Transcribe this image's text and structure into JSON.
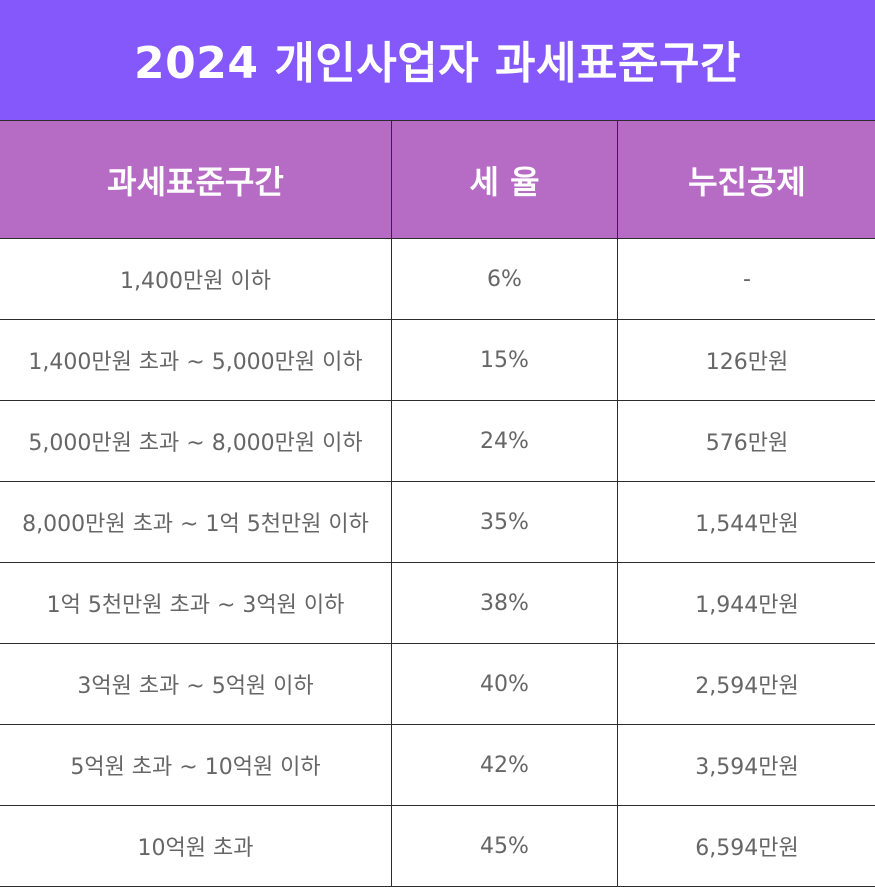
{
  "title": "2024 개인사업자 과세표준구간",
  "headers": [
    "과세표준구간",
    "세 율",
    "누진공제"
  ],
  "rows": [
    {
      "range": "1,400만원 이하",
      "rate": "6%",
      "deduction": "-"
    },
    {
      "range": "1,400만원 초과 ~ 5,000만원 이하",
      "rate": "15%",
      "deduction": "126만원"
    },
    {
      "range": "5,000만원 초과 ~ 8,000만원 이하",
      "rate": "24%",
      "deduction": "576만원"
    },
    {
      "range": "8,000만원 초과 ~ 1억 5천만원 이하",
      "rate": "35%",
      "deduction": "1,544만원"
    },
    {
      "range": "1억 5천만원 초과 ~ 3억원 이하",
      "rate": "38%",
      "deduction": "1,944만원"
    },
    {
      "range": "3억원 초과 ~ 5억원 이하",
      "rate": "40%",
      "deduction": "2,594만원"
    },
    {
      "range": "5억원 초과 ~ 10억원 이하",
      "rate": "42%",
      "deduction": "3,594만원"
    },
    {
      "range": "10억원 초과",
      "rate": "45%",
      "deduction": "6,594만원"
    }
  ],
  "colors": {
    "banner": "#8558fb",
    "header": "#b66cc5",
    "text": "#666666",
    "border": "#2c2c2c"
  }
}
